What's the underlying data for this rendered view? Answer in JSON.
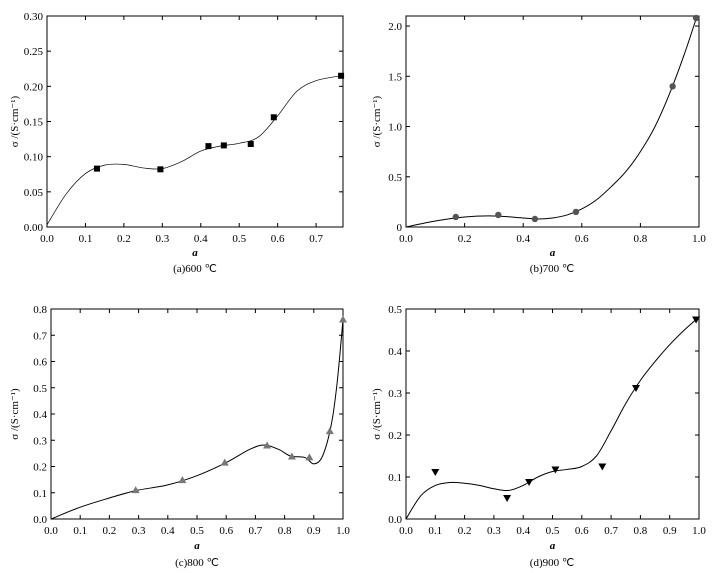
{
  "chart_data": [
    {
      "type": "scatter",
      "panel": "a",
      "caption": "(a)600 ℃",
      "xlabel": "a",
      "ylabel": "σ /(S·cm⁻¹)",
      "xlim": [
        0,
        0.77
      ],
      "ylim": [
        0,
        0.3
      ],
      "xticks": [
        "0.0",
        "0.1",
        "0.2",
        "0.3",
        "0.4",
        "0.5",
        "0.6",
        "0.7"
      ],
      "yticks": [
        "0.00",
        "0.05",
        "0.10",
        "0.15",
        "0.20",
        "0.25",
        "0.30"
      ],
      "marker": "square",
      "marker_color": "#000000",
      "series": [
        {
          "name": "600 ℃",
          "x": [
            0.13,
            0.295,
            0.42,
            0.46,
            0.53,
            0.59,
            0.765
          ],
          "y": [
            0.083,
            0.082,
            0.115,
            0.116,
            0.118,
            0.156,
            0.215
          ]
        }
      ],
      "fit_curve": {
        "x": [
          0.0,
          0.05,
          0.1,
          0.15,
          0.2,
          0.25,
          0.3,
          0.35,
          0.4,
          0.45,
          0.5,
          0.55,
          0.6,
          0.65,
          0.7,
          0.765
        ],
        "y": [
          0.003,
          0.047,
          0.076,
          0.088,
          0.089,
          0.084,
          0.083,
          0.093,
          0.108,
          0.115,
          0.119,
          0.128,
          0.158,
          0.193,
          0.208,
          0.215
        ]
      }
    },
    {
      "type": "scatter",
      "panel": "b",
      "caption": "(b)700 ℃",
      "xlabel": "a",
      "ylabel": "σ /(S·cm⁻¹)",
      "xlim": [
        0,
        1.0
      ],
      "ylim": [
        0,
        2.1
      ],
      "xticks": [
        "0.0",
        "0.2",
        "0.4",
        "0.6",
        "0.8",
        "1.0"
      ],
      "yticks": [
        "0",
        "0.5",
        "1.0",
        "1.5",
        "2.0"
      ],
      "marker": "circle",
      "marker_color": "#555555",
      "series": [
        {
          "name": "700 ℃",
          "x": [
            0.17,
            0.315,
            0.44,
            0.58,
            0.91,
            0.99
          ],
          "y": [
            0.1,
            0.12,
            0.08,
            0.15,
            1.4,
            2.08
          ]
        }
      ],
      "fit_curve": {
        "x": [
          0.0,
          0.1,
          0.2,
          0.3,
          0.4,
          0.45,
          0.5,
          0.55,
          0.6,
          0.65,
          0.7,
          0.75,
          0.8,
          0.85,
          0.9,
          0.95,
          0.99
        ],
        "y": [
          0.0,
          0.06,
          0.1,
          0.11,
          0.09,
          0.08,
          0.09,
          0.12,
          0.18,
          0.27,
          0.4,
          0.55,
          0.75,
          1.0,
          1.33,
          1.72,
          2.07
        ]
      }
    },
    {
      "type": "scatter",
      "panel": "c",
      "caption": "(c)800 ℃",
      "xlabel": "a",
      "ylabel": "σ /(S·cm⁻¹)",
      "xlim": [
        0,
        1.0
      ],
      "ylim": [
        0,
        0.8
      ],
      "xticks": [
        "0.0",
        "0.1",
        "0.2",
        "0.3",
        "0.4",
        "0.5",
        "0.6",
        "0.7",
        "0.8",
        "0.9",
        "1.0"
      ],
      "yticks": [
        "0.0",
        "0.1",
        "0.2",
        "0.3",
        "0.4",
        "0.5",
        "0.6",
        "0.7",
        "0.8"
      ],
      "marker": "triangle-up",
      "marker_color": "#777777",
      "series": [
        {
          "name": "800 ℃",
          "x": [
            0.29,
            0.45,
            0.595,
            0.74,
            0.825,
            0.885,
            0.955,
            1.0
          ],
          "y": [
            0.11,
            0.148,
            0.215,
            0.28,
            0.238,
            0.235,
            0.335,
            0.76
          ]
        }
      ],
      "fit_curve": {
        "x": [
          0.0,
          0.1,
          0.2,
          0.29,
          0.4,
          0.5,
          0.6,
          0.68,
          0.73,
          0.78,
          0.82,
          0.87,
          0.9,
          0.93,
          0.96,
          0.98,
          1.0
        ],
        "y": [
          0.0,
          0.045,
          0.08,
          0.108,
          0.13,
          0.165,
          0.215,
          0.265,
          0.282,
          0.265,
          0.24,
          0.234,
          0.21,
          0.24,
          0.36,
          0.52,
          0.76
        ]
      }
    },
    {
      "type": "scatter",
      "panel": "d",
      "caption": "(d)900 ℃",
      "xlabel": "a",
      "ylabel": "σ /(S·cm⁻¹)",
      "xlim": [
        0,
        1.0
      ],
      "ylim": [
        0,
        0.5
      ],
      "xticks": [
        "0.0",
        "0.1",
        "0.2",
        "0.3",
        "0.4",
        "0.5",
        "0.6",
        "0.7",
        "0.8",
        "0.9",
        "1.0"
      ],
      "yticks": [
        "0.0",
        "0.1",
        "0.2",
        "0.3",
        "0.4",
        "0.5"
      ],
      "marker": "triangle-down",
      "marker_color": "#000000",
      "series": [
        {
          "name": "900 ℃",
          "x": [
            0.1,
            0.345,
            0.42,
            0.51,
            0.67,
            0.785,
            0.99
          ],
          "y": [
            0.112,
            0.05,
            0.088,
            0.118,
            0.125,
            0.312,
            0.475
          ]
        }
      ],
      "fit_curve": {
        "x": [
          0.0,
          0.05,
          0.1,
          0.15,
          0.2,
          0.25,
          0.3,
          0.35,
          0.4,
          0.45,
          0.5,
          0.55,
          0.6,
          0.65,
          0.7,
          0.75,
          0.8,
          0.85,
          0.9,
          0.95,
          0.99
        ],
        "y": [
          0.0,
          0.055,
          0.08,
          0.087,
          0.085,
          0.08,
          0.072,
          0.068,
          0.08,
          0.1,
          0.113,
          0.118,
          0.125,
          0.15,
          0.21,
          0.275,
          0.33,
          0.375,
          0.415,
          0.45,
          0.475
        ]
      }
    }
  ]
}
